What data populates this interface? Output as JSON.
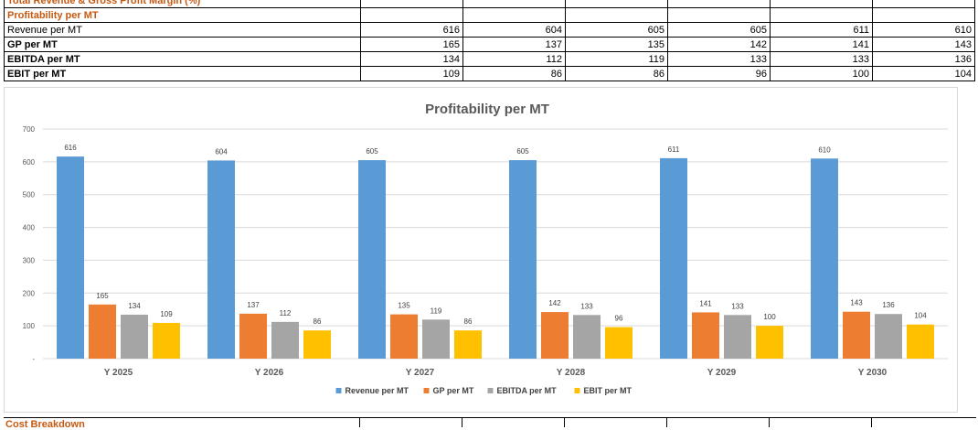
{
  "table": {
    "header_label": "Total Revenue & Gross Profit Margin (%)",
    "section_label": "Profitability per MT",
    "rows": [
      {
        "label": "Revenue per MT",
        "values": [
          "616",
          "604",
          "605",
          "605",
          "611",
          "610"
        ],
        "bold": false
      },
      {
        "label": "GP per MT",
        "values": [
          "165",
          "137",
          "135",
          "142",
          "141",
          "143"
        ],
        "bold": true
      },
      {
        "label": "EBITDA per MT",
        "values": [
          "134",
          "112",
          "119",
          "133",
          "133",
          "136"
        ],
        "bold": true
      },
      {
        "label": "EBIT per MT",
        "values": [
          "109",
          "86",
          "86",
          "96",
          "100",
          "104"
        ],
        "bold": true
      }
    ]
  },
  "chart_data": {
    "type": "bar",
    "title": "Profitability per MT",
    "categories": [
      "Y 2025",
      "Y 2026",
      "Y 2027",
      "Y 2028",
      "Y 2029",
      "Y 2030"
    ],
    "series": [
      {
        "name": "Revenue per MT",
        "color": "#5B9BD5",
        "values": [
          616,
          604,
          605,
          605,
          611,
          610
        ]
      },
      {
        "name": "GP per MT",
        "color": "#ED7D31",
        "values": [
          165,
          137,
          135,
          142,
          141,
          143
        ]
      },
      {
        "name": "EBITDA per MT",
        "color": "#A5A5A5",
        "values": [
          134,
          112,
          119,
          133,
          133,
          136
        ]
      },
      {
        "name": "EBIT per MT",
        "color": "#FFC000",
        "values": [
          109,
          86,
          86,
          96,
          100,
          104
        ]
      }
    ],
    "ylim": [
      0,
      700
    ],
    "yticks": [
      0,
      100,
      200,
      300,
      400,
      500,
      600,
      700
    ],
    "ytick_labels": [
      "-",
      "100",
      "200",
      "300",
      "400",
      "500",
      "600",
      "700"
    ],
    "grid": true,
    "legend": "bottom"
  },
  "footer_label": "Cost Breakdown"
}
